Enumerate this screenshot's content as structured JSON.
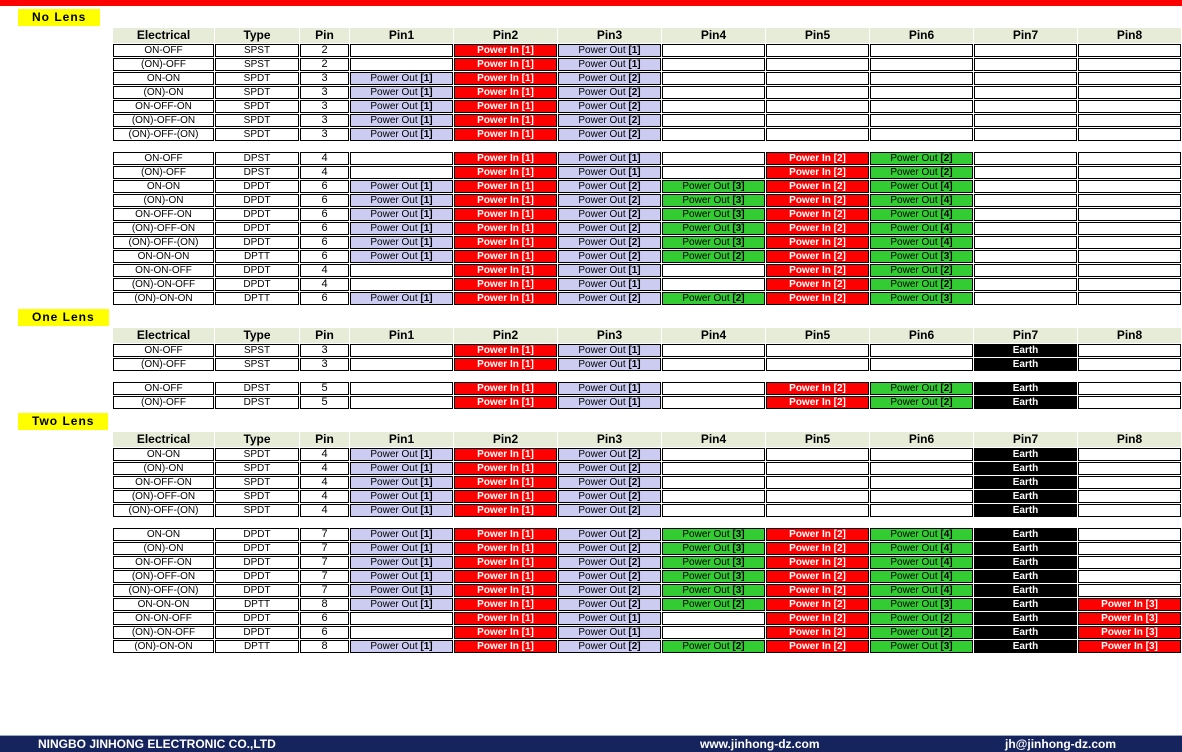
{
  "colors": {
    "power_in": "#FF0000",
    "power_out_primary": "#CCCCF2",
    "power_out_secondary": "#33CC33",
    "earth_bg": "#000000",
    "earth_text": "#FFFFFF",
    "header_bg": "#E7ECD8",
    "label_bg": "#FFFF00",
    "banner": "#FF0000",
    "footer_bg": "#16245E"
  },
  "columns": [
    "Electrical",
    "Type",
    "Pin",
    "Pin1",
    "Pin2",
    "Pin3",
    "Pin4",
    "Pin5",
    "Pin6",
    "Pin7",
    "Pin8"
  ],
  "cell_defs": {
    "B": {
      "text": "",
      "style": "blank"
    },
    "I1": {
      "text": "Power In 【1】",
      "style": "in"
    },
    "I2": {
      "text": "Power In 【2】",
      "style": "in"
    },
    "I3": {
      "text": "Power In 【3】",
      "style": "in"
    },
    "O1": {
      "text": "Power Out 【1】",
      "style": "out"
    },
    "O2": {
      "text": "Power Out 【2】",
      "style": "out"
    },
    "G2": {
      "text": "Power Out 【2】",
      "style": "gout"
    },
    "G3": {
      "text": "Power Out 【3】",
      "style": "gout"
    },
    "G4": {
      "text": "Power Out 【4】",
      "style": "gout"
    },
    "E": {
      "text": "Earth",
      "style": "earth"
    }
  },
  "sections": [
    {
      "label": "No Lens",
      "tables": [
        {
          "show_header": true,
          "rows": [
            {
              "electrical": "ON-OFF",
              "type": "SPST",
              "pin": "2",
              "cells": [
                "B",
                "I1",
                "O1",
                "B",
                "B",
                "B",
                "B",
                "B"
              ]
            },
            {
              "electrical": "(ON)-OFF",
              "type": "SPST",
              "pin": "2",
              "cells": [
                "B",
                "I1",
                "O1",
                "B",
                "B",
                "B",
                "B",
                "B"
              ]
            },
            {
              "electrical": "ON-ON",
              "type": "SPDT",
              "pin": "3",
              "cells": [
                "O1",
                "I1",
                "O2",
                "B",
                "B",
                "B",
                "B",
                "B"
              ]
            },
            {
              "electrical": "(ON)-ON",
              "type": "SPDT",
              "pin": "3",
              "cells": [
                "O1",
                "I1",
                "O2",
                "B",
                "B",
                "B",
                "B",
                "B"
              ]
            },
            {
              "electrical": "ON-OFF-ON",
              "type": "SPDT",
              "pin": "3",
              "cells": [
                "O1",
                "I1",
                "O2",
                "B",
                "B",
                "B",
                "B",
                "B"
              ]
            },
            {
              "electrical": "(ON)-OFF-ON",
              "type": "SPDT",
              "pin": "3",
              "cells": [
                "O1",
                "I1",
                "O2",
                "B",
                "B",
                "B",
                "B",
                "B"
              ]
            },
            {
              "electrical": "(ON)-OFF-(ON)",
              "type": "SPDT",
              "pin": "3",
              "cells": [
                "O1",
                "I1",
                "O2",
                "B",
                "B",
                "B",
                "B",
                "B"
              ]
            }
          ]
        },
        {
          "show_header": false,
          "rows": [
            {
              "electrical": "ON-OFF",
              "type": "DPST",
              "pin": "4",
              "cells": [
                "B",
                "I1",
                "O1",
                "B",
                "I2",
                "G2",
                "B",
                "B"
              ]
            },
            {
              "electrical": "(ON)-OFF",
              "type": "DPST",
              "pin": "4",
              "cells": [
                "B",
                "I1",
                "O1",
                "B",
                "I2",
                "G2",
                "B",
                "B"
              ]
            },
            {
              "electrical": "ON-ON",
              "type": "DPDT",
              "pin": "6",
              "cells": [
                "O1",
                "I1",
                "O2",
                "G3",
                "I2",
                "G4",
                "B",
                "B"
              ]
            },
            {
              "electrical": "(ON)-ON",
              "type": "DPDT",
              "pin": "6",
              "cells": [
                "O1",
                "I1",
                "O2",
                "G3",
                "I2",
                "G4",
                "B",
                "B"
              ]
            },
            {
              "electrical": "ON-OFF-ON",
              "type": "DPDT",
              "pin": "6",
              "cells": [
                "O1",
                "I1",
                "O2",
                "G3",
                "I2",
                "G4",
                "B",
                "B"
              ]
            },
            {
              "electrical": "(ON)-OFF-ON",
              "type": "DPDT",
              "pin": "6",
              "cells": [
                "O1",
                "I1",
                "O2",
                "G3",
                "I2",
                "G4",
                "B",
                "B"
              ]
            },
            {
              "electrical": "(ON)-OFF-(ON)",
              "type": "DPDT",
              "pin": "6",
              "cells": [
                "O1",
                "I1",
                "O2",
                "G3",
                "I2",
                "G4",
                "B",
                "B"
              ]
            },
            {
              "electrical": "ON-ON-ON",
              "type": "DPTT",
              "pin": "6",
              "cells": [
                "O1",
                "I1",
                "O2",
                "G2",
                "I2",
                "G3",
                "B",
                "B"
              ]
            },
            {
              "electrical": "ON-ON-OFF",
              "type": "DPDT",
              "pin": "4",
              "cells": [
                "B",
                "I1",
                "O1",
                "B",
                "I2",
                "G2",
                "B",
                "B"
              ]
            },
            {
              "electrical": "(ON)-ON-OFF",
              "type": "DPDT",
              "pin": "4",
              "cells": [
                "B",
                "I1",
                "O1",
                "B",
                "I2",
                "G2",
                "B",
                "B"
              ]
            },
            {
              "electrical": "(ON)-ON-ON",
              "type": "DPTT",
              "pin": "6",
              "cells": [
                "O1",
                "I1",
                "O2",
                "G2",
                "I2",
                "G3",
                "B",
                "B"
              ]
            }
          ]
        }
      ]
    },
    {
      "label": "One Lens",
      "tables": [
        {
          "show_header": true,
          "rows": [
            {
              "electrical": "ON-OFF",
              "type": "SPST",
              "pin": "3",
              "cells": [
                "B",
                "I1",
                "O1",
                "B",
                "B",
                "B",
                "E",
                "B"
              ]
            },
            {
              "electrical": "(ON)-OFF",
              "type": "SPST",
              "pin": "3",
              "cells": [
                "B",
                "I1",
                "O1",
                "B",
                "B",
                "B",
                "E",
                "B"
              ]
            }
          ]
        },
        {
          "show_header": false,
          "rows": [
            {
              "electrical": "ON-OFF",
              "type": "DPST",
              "pin": "5",
              "cells": [
                "B",
                "I1",
                "O1",
                "B",
                "I2",
                "G2",
                "E",
                "B"
              ]
            },
            {
              "electrical": "(ON)-OFF",
              "type": "DPST",
              "pin": "5",
              "cells": [
                "B",
                "I1",
                "O1",
                "B",
                "I2",
                "G2",
                "E",
                "B"
              ]
            }
          ]
        }
      ]
    },
    {
      "label": "Two Lens",
      "tables": [
        {
          "show_header": true,
          "rows": [
            {
              "electrical": "ON-ON",
              "type": "SPDT",
              "pin": "4",
              "cells": [
                "O1",
                "I1",
                "O2",
                "B",
                "B",
                "B",
                "E",
                "B"
              ]
            },
            {
              "electrical": "(ON)-ON",
              "type": "SPDT",
              "pin": "4",
              "cells": [
                "O1",
                "I1",
                "O2",
                "B",
                "B",
                "B",
                "E",
                "B"
              ]
            },
            {
              "electrical": "ON-OFF-ON",
              "type": "SPDT",
              "pin": "4",
              "cells": [
                "O1",
                "I1",
                "O2",
                "B",
                "B",
                "B",
                "E",
                "B"
              ]
            },
            {
              "electrical": "(ON)-OFF-ON",
              "type": "SPDT",
              "pin": "4",
              "cells": [
                "O1",
                "I1",
                "O2",
                "B",
                "B",
                "B",
                "E",
                "B"
              ]
            },
            {
              "electrical": "(ON)-OFF-(ON)",
              "type": "SPDT",
              "pin": "4",
              "cells": [
                "O1",
                "I1",
                "O2",
                "B",
                "B",
                "B",
                "E",
                "B"
              ]
            }
          ]
        },
        {
          "show_header": false,
          "rows": [
            {
              "electrical": "ON-ON",
              "type": "DPDT",
              "pin": "7",
              "cells": [
                "O1",
                "I1",
                "O2",
                "G3",
                "I2",
                "G4",
                "E",
                "B"
              ]
            },
            {
              "electrical": "(ON)-ON",
              "type": "DPDT",
              "pin": "7",
              "cells": [
                "O1",
                "I1",
                "O2",
                "G3",
                "I2",
                "G4",
                "E",
                "B"
              ]
            },
            {
              "electrical": "ON-OFF-ON",
              "type": "DPDT",
              "pin": "7",
              "cells": [
                "O1",
                "I1",
                "O2",
                "G3",
                "I2",
                "G4",
                "E",
                "B"
              ]
            },
            {
              "electrical": "(ON)-OFF-ON",
              "type": "DPDT",
              "pin": "7",
              "cells": [
                "O1",
                "I1",
                "O2",
                "G3",
                "I2",
                "G4",
                "E",
                "B"
              ]
            },
            {
              "electrical": "(ON)-OFF-(ON)",
              "type": "DPDT",
              "pin": "7",
              "cells": [
                "O1",
                "I1",
                "O2",
                "G3",
                "I2",
                "G4",
                "E",
                "B"
              ]
            },
            {
              "electrical": "ON-ON-ON",
              "type": "DPTT",
              "pin": "8",
              "cells": [
                "O1",
                "I1",
                "O2",
                "G2",
                "I2",
                "G3",
                "E",
                "I3"
              ]
            },
            {
              "electrical": "ON-ON-OFF",
              "type": "DPDT",
              "pin": "6",
              "cells": [
                "B",
                "I1",
                "O1",
                "B",
                "I2",
                "G2",
                "E",
                "I3"
              ]
            },
            {
              "electrical": "(ON)-ON-OFF",
              "type": "DPDT",
              "pin": "6",
              "cells": [
                "B",
                "I1",
                "O1",
                "B",
                "I2",
                "G2",
                "E",
                "I3"
              ]
            },
            {
              "electrical": "(ON)-ON-ON",
              "type": "DPTT",
              "pin": "8",
              "cells": [
                "O1",
                "I1",
                "O2",
                "G2",
                "I2",
                "G3",
                "E",
                "I3"
              ]
            }
          ]
        }
      ]
    }
  ],
  "footer": {
    "company": "NINGBO JINHONG ELECTRONIC CO.,LTD",
    "website": "www.jinhong-dz.com",
    "email": "jh@jinhong-dz.com"
  }
}
